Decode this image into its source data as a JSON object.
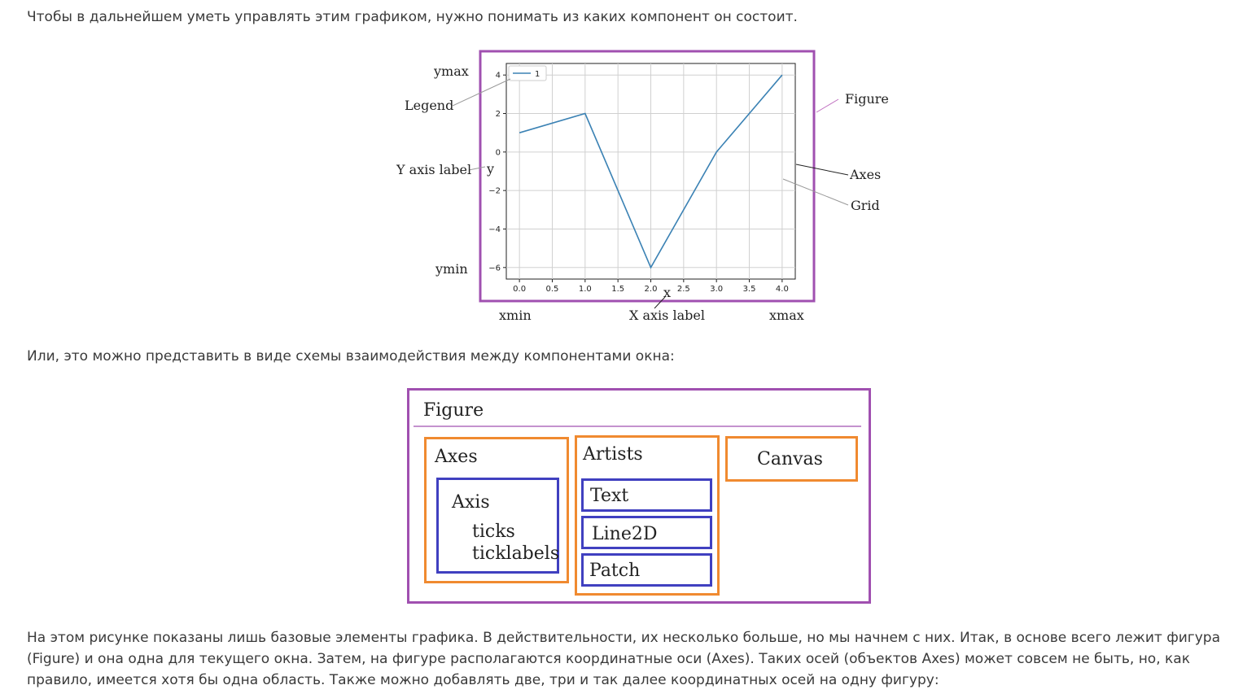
{
  "paragraphs": {
    "intro": "Чтобы в дальнейшем уметь управлять этим графиком, нужно понимать из каких компонент он состоит.",
    "middle": "Или, это можно представить в виде схемы взаимодействия между компонентами окна:",
    "outro": "На этом рисунке показаны лишь базовые элементы графика. В действительности, их несколько больше, но мы начнем с них. Итак, в основе всего лежит фигура (Figure) и она одна для текущего окна. Затем, на фигуре располагаются координатные оси (Axes). Таких осей (объектов Axes) может совсем не быть, но, как правило, имеется хотя бы одна область. Также можно добавлять две, три и так далее координатных осей на одну фигуру:"
  },
  "anatomy": {
    "labels": {
      "ymax": "ymax",
      "legend": "Legend",
      "y_axis_label": "Y axis label",
      "ymin": "ymin",
      "figure": "Figure",
      "axes": "Axes",
      "grid": "Grid",
      "xmin": "xmin",
      "x_axis_label": "X axis label",
      "xmax": "xmax"
    },
    "colors": {
      "figure_border": "#a050b0",
      "line": "#3b82b4"
    }
  },
  "chart_data": {
    "type": "line",
    "xlabel": "x",
    "ylabel": "y",
    "x": [
      0,
      1,
      2,
      3,
      4
    ],
    "series": [
      {
        "name": "1",
        "values": [
          1,
          2,
          -6,
          0,
          4
        ]
      }
    ],
    "xlim": [
      -0.2,
      4.2
    ],
    "ylim": [
      -6.6,
      4.6
    ],
    "xticks": [
      "0.0",
      "0.5",
      "1.0",
      "1.5",
      "2.0",
      "2.5",
      "3.0",
      "3.5",
      "4.0"
    ],
    "xtick_values": [
      0,
      0.5,
      1,
      1.5,
      2,
      2.5,
      3,
      3.5,
      4
    ],
    "yticks": [
      "4",
      "2",
      "0",
      "−2",
      "−4",
      "−6"
    ],
    "ytick_values": [
      4,
      2,
      0,
      -2,
      -4,
      -6
    ],
    "grid": true,
    "legend": "top-left"
  },
  "schema": {
    "figure": "Figure",
    "axes": "Axes",
    "axis": "Axis",
    "ticks": "ticks",
    "ticklabels": "ticklabels",
    "artists": "Artists",
    "text": "Text",
    "line2d": "Line2D",
    "patch": "Patch",
    "canvas": "Canvas",
    "colors": {
      "figure": "#a050b0",
      "container": "#f08a30",
      "inner": "#4040c0"
    }
  }
}
